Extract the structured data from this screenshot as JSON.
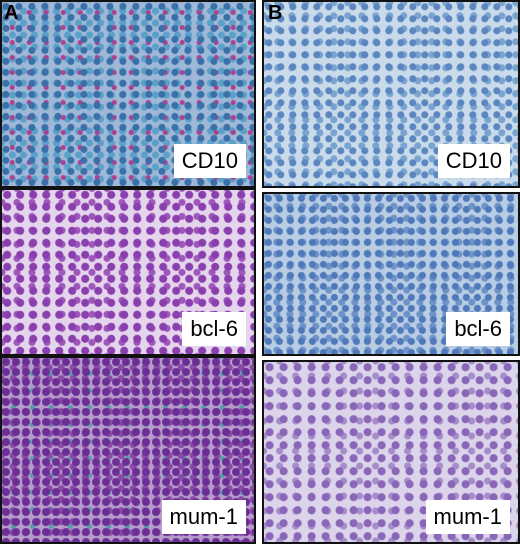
{
  "column_labels": [
    "A",
    "B"
  ],
  "panels": [
    {
      "label": "CD10"
    },
    {
      "label": "CD10"
    },
    {
      "label": "bcl-6"
    },
    {
      "label": "bcl-6"
    },
    {
      "label": "mum-1"
    },
    {
      "label": "mum-1"
    }
  ]
}
